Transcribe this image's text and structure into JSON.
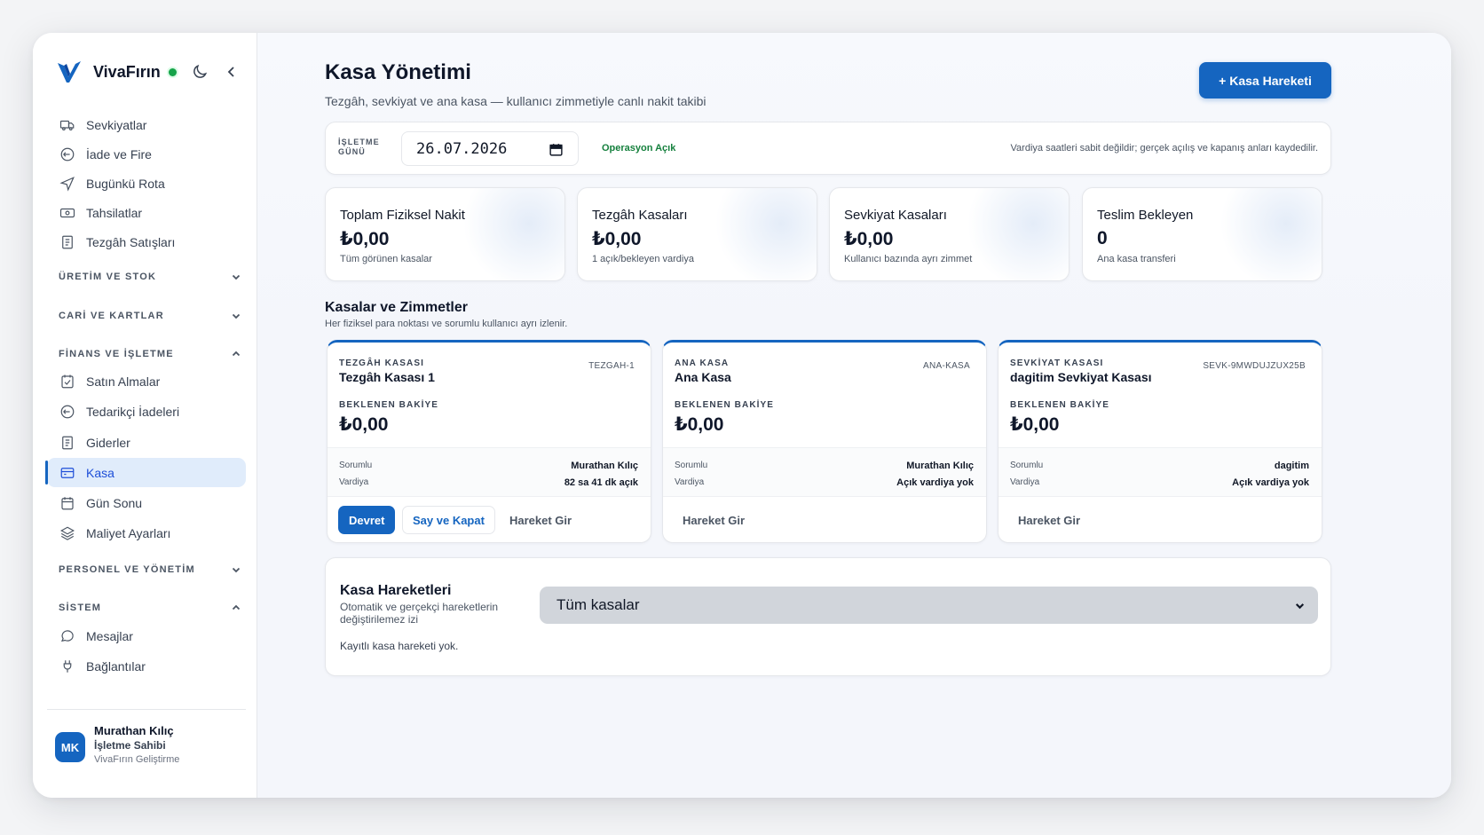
{
  "brand": {
    "name": "VivaFırın"
  },
  "sidebar": {
    "top_items": [
      {
        "label": "Sevkiyatlar",
        "icon": "truck-icon"
      },
      {
        "label": "İade ve Fire",
        "icon": "undo-circle-icon"
      },
      {
        "label": "Bugünkü Rota",
        "icon": "navigation-icon"
      },
      {
        "label": "Tahsilatlar",
        "icon": "banknote-icon"
      },
      {
        "label": "Tezgâh Satışları",
        "icon": "receipt-icon"
      }
    ],
    "sections": [
      {
        "label": "ÜRETİM VE STOK",
        "expanded": false
      },
      {
        "label": "CARİ VE KARTLAR",
        "expanded": false
      },
      {
        "label": "FİNANS VE İŞLETME",
        "expanded": true
      },
      {
        "label": "PERSONEL VE YÖNETİM",
        "expanded": false
      },
      {
        "label": "SİSTEM",
        "expanded": true
      }
    ],
    "finance_items": [
      {
        "label": "Satın Almalar",
        "icon": "purchase-icon"
      },
      {
        "label": "Tedarikçi İadeleri",
        "icon": "undo-circle-icon"
      },
      {
        "label": "Giderler",
        "icon": "receipt-icon"
      },
      {
        "label": "Kasa",
        "icon": "cash-register-icon",
        "active": true
      },
      {
        "label": "Gün Sonu",
        "icon": "calendar-icon"
      },
      {
        "label": "Maliyet Ayarları",
        "icon": "layers-icon"
      }
    ],
    "system_items": [
      {
        "label": "Mesajlar",
        "icon": "message-icon"
      },
      {
        "label": "Bağlantılar",
        "icon": "plug-icon"
      }
    ]
  },
  "user": {
    "initials": "MK",
    "name": "Murathan Kılıç",
    "role": "İşletme Sahibi",
    "company": "VivaFırın Geliştirme"
  },
  "header": {
    "title": "Kasa Yönetimi",
    "subtitle": "Tezgâh, sevkiyat ve ana kasa — kullanıcı zimmetiyle canlı nakit takibi",
    "primary_button": "+ Kasa Hareketi"
  },
  "toolbar": {
    "label": "İŞLETME GÜNÜ",
    "date": "26.07.2026",
    "status": "Operasyon Açık",
    "note": "Vardiya saatleri sabit değildir; gerçek açılış ve kapanış anları kaydedilir."
  },
  "stats": [
    {
      "title": "Toplam Fiziksel Nakit",
      "value": "₺0,00",
      "desc": "Tüm görünen kasalar"
    },
    {
      "title": "Tezgâh Kasaları",
      "value": "₺0,00",
      "desc": "1 açık/bekleyen vardiya"
    },
    {
      "title": "Sevkiyat Kasaları",
      "value": "₺0,00",
      "desc": "Kullanıcı bazında ayrı zimmet"
    },
    {
      "title": "Teslim Bekleyen",
      "value": "0",
      "desc": "Ana kasa transferi"
    }
  ],
  "registers_section": {
    "title": "Kasalar ve Zimmetler",
    "subtitle": "Her fiziksel para noktası ve sorumlu kullanıcı ayrı izlenir."
  },
  "registers": [
    {
      "type": "TEZGÂH KASASI",
      "name": "Tezgâh Kasası 1",
      "code": "TEZGAH-1",
      "balance_label": "BEKLENEN BAKİYE",
      "balance": "₺0,00",
      "resp_label": "Sorumlu",
      "resp": "Murathan Kılıç",
      "shift_label": "Vardiya",
      "shift": "82 sa 41 dk açık",
      "actions": {
        "transfer": "Devret",
        "count_close": "Say ve Kapat",
        "entry": "Hareket Gir"
      }
    },
    {
      "type": "ANA KASA",
      "name": "Ana Kasa",
      "code": "ANA-KASA",
      "balance_label": "BEKLENEN BAKİYE",
      "balance": "₺0,00",
      "resp_label": "Sorumlu",
      "resp": "Murathan Kılıç",
      "shift_label": "Vardiya",
      "shift": "Açık vardiya yok",
      "actions": {
        "entry": "Hareket Gir"
      }
    },
    {
      "type": "SEVKİYAT KASASI",
      "name": "dagitim Sevkiyat Kasası",
      "code": "SEVK-9MWDUJZUX25B",
      "balance_label": "BEKLENEN BAKİYE",
      "balance": "₺0,00",
      "resp_label": "Sorumlu",
      "resp": "dagitim",
      "shift_label": "Vardiya",
      "shift": "Açık vardiya yok",
      "actions": {
        "entry": "Hareket Gir"
      }
    }
  ],
  "movements": {
    "title": "Kasa Hareketleri",
    "subtitle": "Otomatik ve gerçekçi hareketlerin değiştirilemez izi",
    "filter_value": "Tüm kasalar",
    "empty": "Kayıtlı kasa hareketi yok."
  },
  "colors": {
    "accent": "#1565c0",
    "success": "#15803d",
    "active_bg": "#e0ecfb"
  }
}
